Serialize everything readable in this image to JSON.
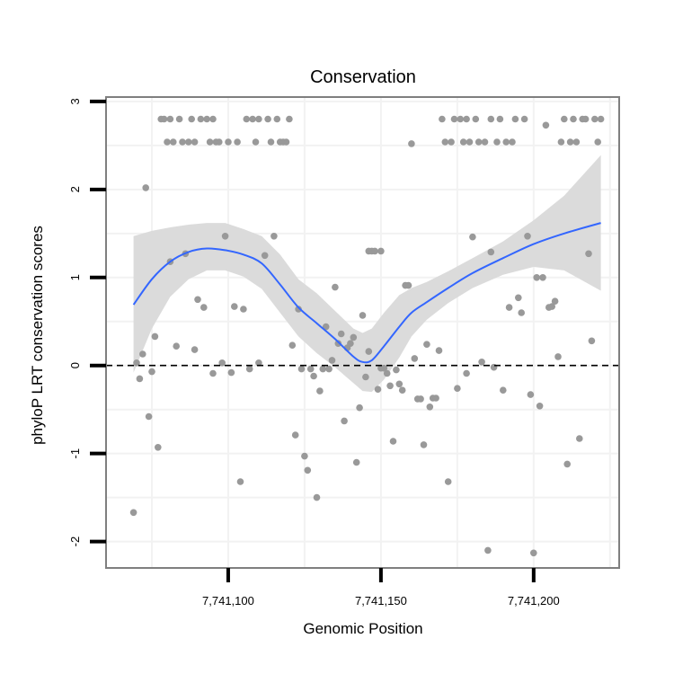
{
  "chart_data": {
    "type": "scatter",
    "title": "Conservation",
    "xlabel": "Genomic Position",
    "ylabel": "phyloP LRT conservation scores",
    "xlim": [
      7741060,
      7741228
    ],
    "ylim": [
      -2.3,
      3.05
    ],
    "x_ticks": [
      {
        "value": 7741100,
        "label": "7,741,100"
      },
      {
        "value": 7741150,
        "label": "7,741,150"
      },
      {
        "value": 7741200,
        "label": "7,741,200"
      }
    ],
    "y_ticks": [
      {
        "value": -2,
        "label": "-2"
      },
      {
        "value": -1,
        "label": "-1"
      },
      {
        "value": 0,
        "label": "0"
      },
      {
        "value": 1,
        "label": "1"
      },
      {
        "value": 2,
        "label": "2"
      },
      {
        "value": 3,
        "label": "3"
      }
    ],
    "grid": true,
    "reference_line": {
      "y": 0,
      "style": "dashed"
    },
    "colors": {
      "points": "#999999",
      "smooth": "#3366ff",
      "ribbon": "#d9d9d9",
      "panel_border": "#7f7f7f",
      "grid": "#f2f2f2"
    },
    "points": [
      [
        7741069,
        -1.67
      ],
      [
        7741070,
        0.03
      ],
      [
        7741071,
        -0.15
      ],
      [
        7741072,
        0.13
      ],
      [
        7741073,
        2.02
      ],
      [
        7741074,
        -0.58
      ],
      [
        7741075,
        -0.07
      ],
      [
        7741076,
        0.33
      ],
      [
        7741077,
        -0.93
      ],
      [
        7741078,
        2.8
      ],
      [
        7741079,
        2.8
      ],
      [
        7741080,
        2.54
      ],
      [
        7741081,
        2.8
      ],
      [
        7741081,
        1.18
      ],
      [
        7741082,
        2.54
      ],
      [
        7741083,
        0.22
      ],
      [
        7741084,
        2.8
      ],
      [
        7741085,
        2.54
      ],
      [
        7741086,
        1.27
      ],
      [
        7741087,
        2.54
      ],
      [
        7741088,
        2.8
      ],
      [
        7741089,
        2.54
      ],
      [
        7741089,
        0.18
      ],
      [
        7741090,
        0.75
      ],
      [
        7741091,
        2.8
      ],
      [
        7741092,
        0.66
      ],
      [
        7741093,
        2.8
      ],
      [
        7741094,
        2.54
      ],
      [
        7741095,
        2.8
      ],
      [
        7741095,
        -0.09
      ],
      [
        7741096,
        2.54
      ],
      [
        7741097,
        2.54
      ],
      [
        7741098,
        0.03
      ],
      [
        7741099,
        1.47
      ],
      [
        7741100,
        2.54
      ],
      [
        7741101,
        -0.08
      ],
      [
        7741102,
        0.67
      ],
      [
        7741103,
        2.54
      ],
      [
        7741104,
        -1.32
      ],
      [
        7741105,
        0.64
      ],
      [
        7741106,
        2.8
      ],
      [
        7741107,
        -0.04
      ],
      [
        7741108,
        2.8
      ],
      [
        7741109,
        2.54
      ],
      [
        7741110,
        2.8
      ],
      [
        7741110,
        0.03
      ],
      [
        7741112,
        1.25
      ],
      [
        7741113,
        2.8
      ],
      [
        7741114,
        2.54
      ],
      [
        7741115,
        1.47
      ],
      [
        7741116,
        2.8
      ],
      [
        7741117,
        2.54
      ],
      [
        7741118,
        2.54
      ],
      [
        7741119,
        2.54
      ],
      [
        7741120,
        2.8
      ],
      [
        7741121,
        0.23
      ],
      [
        7741122,
        -0.79
      ],
      [
        7741123,
        0.64
      ],
      [
        7741124,
        -0.04
      ],
      [
        7741125,
        -1.03
      ],
      [
        7741126,
        -1.19
      ],
      [
        7741127,
        -0.04
      ],
      [
        7741128,
        -0.12
      ],
      [
        7741129,
        -1.5
      ],
      [
        7741130,
        -0.29
      ],
      [
        7741131,
        -0.04
      ],
      [
        7741132,
        0.44
      ],
      [
        7741133,
        -0.04
      ],
      [
        7741134,
        0.06
      ],
      [
        7741135,
        0.89
      ],
      [
        7741136,
        0.25
      ],
      [
        7741137,
        0.36
      ],
      [
        7741138,
        -0.63
      ],
      [
        7741139,
        0.2
      ],
      [
        7741140,
        0.25
      ],
      [
        7741141,
        0.32
      ],
      [
        7741142,
        -1.1
      ],
      [
        7741143,
        -0.48
      ],
      [
        7741144,
        0.57
      ],
      [
        7741145,
        -0.13
      ],
      [
        7741146,
        0.16
      ],
      [
        7741146,
        1.3
      ],
      [
        7741147,
        1.3
      ],
      [
        7741148,
        1.3
      ],
      [
        7741149,
        -0.27
      ],
      [
        7741150,
        1.3
      ],
      [
        7741150,
        -0.03
      ],
      [
        7741151,
        -0.03
      ],
      [
        7741152,
        -0.09
      ],
      [
        7741153,
        -0.23
      ],
      [
        7741154,
        -0.86
      ],
      [
        7741155,
        -0.05
      ],
      [
        7741156,
        -0.21
      ],
      [
        7741157,
        -0.28
      ],
      [
        7741158,
        0.91
      ],
      [
        7741159,
        0.91
      ],
      [
        7741160,
        2.52
      ],
      [
        7741161,
        0.08
      ],
      [
        7741162,
        -0.38
      ],
      [
        7741163,
        -0.38
      ],
      [
        7741164,
        -0.9
      ],
      [
        7741165,
        0.24
      ],
      [
        7741166,
        -0.47
      ],
      [
        7741167,
        -0.37
      ],
      [
        7741168,
        -0.37
      ],
      [
        7741169,
        0.17
      ],
      [
        7741170,
        2.8
      ],
      [
        7741171,
        2.54
      ],
      [
        7741172,
        -1.32
      ],
      [
        7741173,
        2.54
      ],
      [
        7741174,
        2.8
      ],
      [
        7741175,
        -0.26
      ],
      [
        7741176,
        2.8
      ],
      [
        7741177,
        2.54
      ],
      [
        7741178,
        -0.09
      ],
      [
        7741178,
        2.8
      ],
      [
        7741179,
        2.54
      ],
      [
        7741180,
        1.46
      ],
      [
        7741181,
        2.8
      ],
      [
        7741182,
        2.54
      ],
      [
        7741183,
        0.04
      ],
      [
        7741184,
        2.54
      ],
      [
        7741185,
        -2.1
      ],
      [
        7741186,
        2.8
      ],
      [
        7741186,
        1.29
      ],
      [
        7741187,
        -0.02
      ],
      [
        7741188,
        2.54
      ],
      [
        7741189,
        2.8
      ],
      [
        7741190,
        -0.28
      ],
      [
        7741191,
        2.54
      ],
      [
        7741192,
        0.66
      ],
      [
        7741193,
        2.54
      ],
      [
        7741194,
        2.8
      ],
      [
        7741195,
        0.77
      ],
      [
        7741196,
        0.6
      ],
      [
        7741197,
        2.8
      ],
      [
        7741198,
        1.47
      ],
      [
        7741199,
        -0.33
      ],
      [
        7741200,
        -2.13
      ],
      [
        7741201,
        1.0
      ],
      [
        7741202,
        -0.46
      ],
      [
        7741203,
        1.0
      ],
      [
        7741204,
        2.73
      ],
      [
        7741205,
        0.66
      ],
      [
        7741206,
        0.67
      ],
      [
        7741207,
        0.73
      ],
      [
        7741208,
        0.1
      ],
      [
        7741209,
        2.54
      ],
      [
        7741210,
        2.8
      ],
      [
        7741211,
        -1.12
      ],
      [
        7741212,
        2.54
      ],
      [
        7741213,
        2.8
      ],
      [
        7741214,
        2.54
      ],
      [
        7741215,
        -0.83
      ],
      [
        7741216,
        2.8
      ],
      [
        7741217,
        2.8
      ],
      [
        7741218,
        1.27
      ],
      [
        7741219,
        0.28
      ],
      [
        7741220,
        2.8
      ],
      [
        7741221,
        2.54
      ],
      [
        7741222,
        2.8
      ]
    ],
    "smooth": {
      "x": [
        7741069,
        7741075,
        7741081,
        7741087,
        7741093,
        7741099,
        7741105,
        7741111,
        7741117,
        7741123,
        7741129,
        7741135,
        7741141,
        7741144,
        7741147,
        7741151,
        7741156,
        7741160,
        7741165,
        7741172,
        7741180,
        7741190,
        7741200,
        7741210,
        7741222
      ],
      "y": [
        0.69,
        0.98,
        1.18,
        1.29,
        1.33,
        1.31,
        1.26,
        1.16,
        0.92,
        0.66,
        0.48,
        0.3,
        0.1,
        0.04,
        0.06,
        0.22,
        0.44,
        0.6,
        0.72,
        0.88,
        1.05,
        1.22,
        1.38,
        1.5,
        1.62
      ],
      "lower": [
        -0.08,
        0.42,
        0.78,
        0.98,
        1.08,
        1.08,
        1.01,
        0.87,
        0.6,
        0.33,
        0.14,
        -0.02,
        -0.2,
        -0.29,
        -0.3,
        -0.16,
        0.09,
        0.33,
        0.52,
        0.71,
        0.88,
        1.03,
        1.12,
        1.08,
        0.85
      ],
      "upper": [
        1.47,
        1.53,
        1.57,
        1.6,
        1.62,
        1.62,
        1.55,
        1.47,
        1.26,
        0.98,
        0.82,
        0.62,
        0.42,
        0.37,
        0.42,
        0.6,
        0.8,
        0.88,
        0.95,
        1.07,
        1.22,
        1.41,
        1.65,
        1.93,
        2.39
      ]
    }
  }
}
